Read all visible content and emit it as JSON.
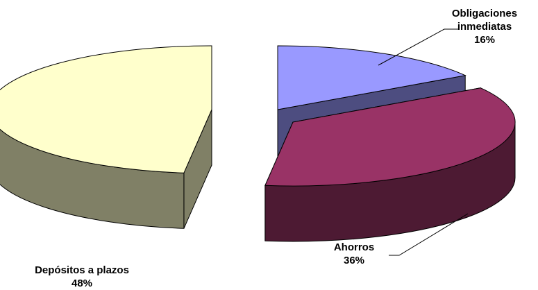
{
  "chart_data": {
    "type": "pie",
    "title": "",
    "style": "exploded 3D pie",
    "slices": [
      {
        "name": "Obligaciones inmediatas",
        "name_lines": [
          "Obligaciones",
          "inmediatas"
        ],
        "value": 16,
        "value_label": "16%",
        "top_color": "#9999FF",
        "side_color": "#4D4D80"
      },
      {
        "name": "Ahorros",
        "name_lines": [
          "Ahorros"
        ],
        "value": 36,
        "value_label": "36%",
        "top_color": "#993366",
        "side_color": "#4D1A33"
      },
      {
        "name": "Depósitos a plazos",
        "name_lines": [
          "Depósitos a plazos"
        ],
        "value": 48,
        "value_label": "48%",
        "top_color": "#FFFFCC",
        "side_color": "#808066"
      }
    ],
    "edge_color": "#000000"
  }
}
